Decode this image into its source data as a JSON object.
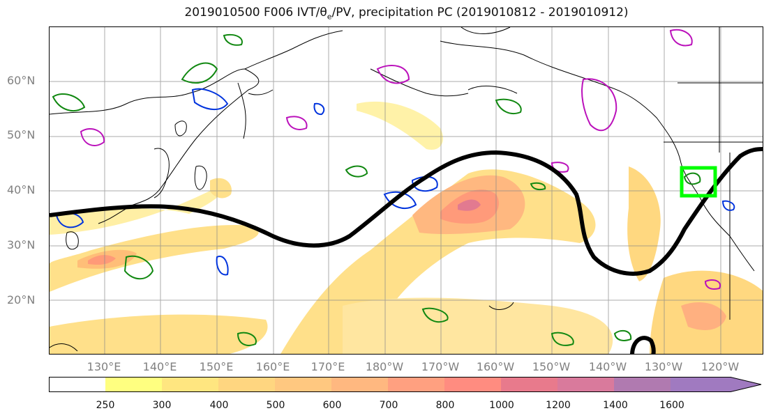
{
  "title": {
    "prefix": "2019010500 F006 IVT/θ",
    "sub": "e",
    "suffix": "/PV, precipitation PC (2019010812 - 2019010912)"
  },
  "lat_labels": [
    "60°N",
    "50°N",
    "40°N",
    "30°N",
    "20°N"
  ],
  "lon_labels": [
    "130°E",
    "140°E",
    "150°E",
    "160°E",
    "170°E",
    "180°W",
    "170°W",
    "160°W",
    "150°W",
    "140°W",
    "130°W",
    "120°W"
  ],
  "colorbar": {
    "ticks": [
      "250",
      "300",
      "400",
      "500",
      "600",
      "700",
      "800",
      "1000",
      "1200",
      "1400",
      "1600"
    ],
    "colors": [
      "#ffffff",
      "#ffff80",
      "#ffe680",
      "#ffd680",
      "#ffc880",
      "#ffb880",
      "#ffa080",
      "#ff8c80",
      "#e87a8c",
      "#d97a9c",
      "#b07ab0",
      "#a07ac0"
    ]
  },
  "colors": {
    "precip": "#ffd27a",
    "precip_core": "#ff9070",
    "jet": "#000000",
    "pv_green": "#118811",
    "pv_blue": "#0033dd",
    "pv_magenta": "#bb11bb",
    "target_box": "#00ff00"
  }
}
